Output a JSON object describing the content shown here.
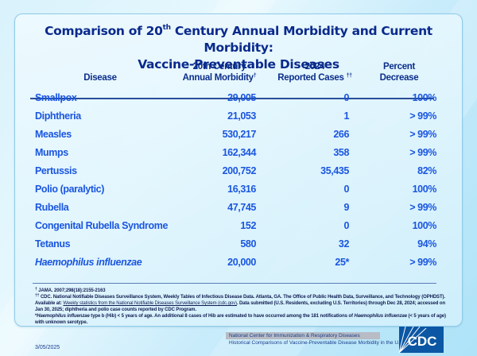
{
  "title": {
    "line1_pre": "Comparison of 20",
    "line1_sup": "th",
    "line1_post": " Century Annual Morbidity and Current Morbidity:",
    "line2": "Vaccine-Preventable Diseases"
  },
  "columns": {
    "disease": "Disease",
    "morbidity_l1": "20th Century",
    "morbidity_l2": "Annual Morbidity",
    "morbidity_mark": "†",
    "cases_l1": "2024",
    "cases_l2": "Reported Cases",
    "cases_mark": "††",
    "pct_l1": "Percent",
    "pct_l2": "Decrease"
  },
  "rows": [
    {
      "disease": "Smallpox",
      "morbidity": "29,005",
      "cases": "0",
      "pct": "100%"
    },
    {
      "disease": "Diphtheria",
      "morbidity": "21,053",
      "cases": "1",
      "pct": "> 99%"
    },
    {
      "disease": "Measles",
      "morbidity": "530,217",
      "cases": "266",
      "pct": "> 99%"
    },
    {
      "disease": "Mumps",
      "morbidity": "162,344",
      "cases": "358",
      "pct": "> 99%"
    },
    {
      "disease": "Pertussis",
      "morbidity": "200,752",
      "cases": "35,435",
      "pct": "82%"
    },
    {
      "disease": "Polio (paralytic)",
      "morbidity": "16,316",
      "cases": "0",
      "pct": "100%"
    },
    {
      "disease": "Rubella",
      "morbidity": "47,745",
      "cases": "9",
      "pct": "> 99%"
    },
    {
      "disease": "Congenital Rubella Syndrome",
      "morbidity": "152",
      "cases": "0",
      "pct": "100%"
    },
    {
      "disease": "Tetanus",
      "morbidity": "580",
      "cases": "32",
      "pct": "94%"
    },
    {
      "disease": "Haemophilus influenzae",
      "morbidity": "20,000",
      "cases": "25*",
      "pct": "> 99%",
      "italic": true
    }
  ],
  "notes": {
    "n1_mark": "†",
    "n1": " JAMA. 2007;298(18):2155-2163",
    "n2_mark": "††",
    "n2_a": " CDC. National Notifiable Diseases Surveillance System, Weekly Tables of Infectious Disease Data. Atlanta, GA. The Office of Public Health Data, Surveillance, and Technology (OPHDST). Available at: ",
    "n2_link": "Weekly statistics from the National Notifiable Diseases Surveillance System (cdc.gov)",
    "n2_b": ". Data submitted (U.S. Residents, excluding U.S. Territories) through Dec 28, 2024; accessed on Jan 30, 2025; diphtheria and polio case counts reported by CDC Program.",
    "n3_a": "*",
    "n3_i1": "Haemophilus influenzae",
    "n3_b": " type b (Hib) < 5 years of age.  An additional 8 cases of Hib are estimated to have occurred among the 181 notifications of ",
    "n3_i2": "Haemophilus influenzae",
    "n3_c": " (< 5 years of age) with unknown serotype."
  },
  "footer": {
    "center": "National Center for Immunization & Respiratory Diseases",
    "subtitle": "Historical Comparisons of Vaccine-Preventable Disease Morbidity in the U.S.",
    "date": "3/05/2025",
    "logo_text": "CDC",
    "logo_color": "#0b57a4"
  }
}
